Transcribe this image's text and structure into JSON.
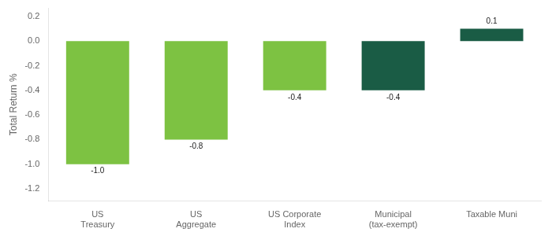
{
  "chart_data": {
    "type": "bar",
    "categories": [
      "US\nTreasury",
      "US\nAggregate",
      "US Corporate\nIndex",
      "Municipal\n(tax-exempt)",
      "Taxable Muni"
    ],
    "values": [
      -1.0,
      -0.8,
      -0.4,
      -0.4,
      0.1
    ],
    "value_labels": [
      "-1.0",
      "-0.8",
      "-0.4",
      "-0.4",
      "0.1"
    ],
    "data_labels": true,
    "colors": [
      "#7dc242",
      "#7dc242",
      "#7dc242",
      "#1a5c45",
      "#1a5c45"
    ],
    "ylabel": "Total Return %",
    "ylim": [
      -1.3,
      0.27
    ],
    "yticks": [
      -1.2,
      {
        "value": -1.0,
        "label": "-1.0"
      },
      -0.8,
      -0.6,
      -0.4,
      -0.2,
      {
        "value": 0.0,
        "label": "0.0"
      },
      0.2
    ],
    "grid": false
  }
}
